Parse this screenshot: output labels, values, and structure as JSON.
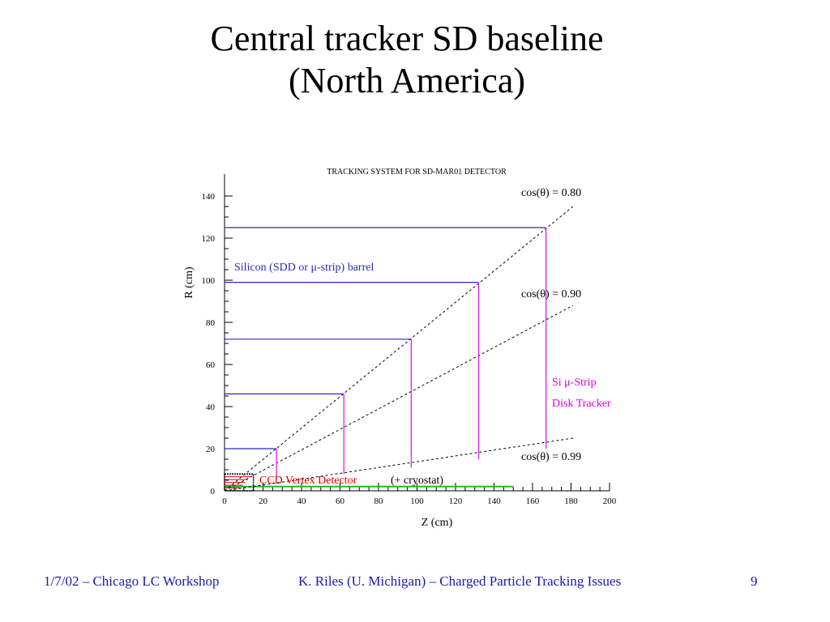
{
  "slide": {
    "title_line1": "Central tracker SD baseline",
    "title_line2": "(North America)"
  },
  "footer": {
    "left": "1/7/02 – Chicago LC Workshop",
    "center": "K. Riles (U. Michigan) – Charged Particle Tracking Issues",
    "page": "9"
  },
  "colors": {
    "barrel": "#2828d0",
    "disk": "#e020e0",
    "cone": "#000000",
    "ccd": "#dd0000",
    "beampipe": "#22bb22",
    "blue_text": "#2a2ab0",
    "footer": "#1a1aa6"
  },
  "chart_data": {
    "type": "line",
    "title": "TRACKING SYSTEM FOR SD-MAR01 DETECTOR",
    "xlabel": "Z (cm)",
    "ylabel": "R (cm)",
    "xlim": [
      0,
      200
    ],
    "ylim": [
      0,
      150
    ],
    "xticks": [
      0,
      20,
      40,
      60,
      80,
      100,
      120,
      140,
      160,
      180,
      200
    ],
    "yticks": [
      0,
      20,
      40,
      60,
      80,
      100,
      120,
      140
    ],
    "barrel_layers": [
      {
        "r": 20,
        "z_max": 27
      },
      {
        "r": 46,
        "z_max": 62
      },
      {
        "r": 72,
        "z_max": 97
      },
      {
        "r": 99,
        "z_max": 132
      },
      {
        "r": 125,
        "z_max": 167
      }
    ],
    "disks": [
      {
        "z": 27,
        "r_min": 6,
        "r_max": 20
      },
      {
        "z": 62,
        "r_min": 8,
        "r_max": 46
      },
      {
        "z": 97,
        "r_min": 11,
        "r_max": 72
      },
      {
        "z": 132,
        "r_min": 15,
        "r_max": 99
      },
      {
        "z": 167,
        "r_min": 20,
        "r_max": 125
      }
    ],
    "cones": [
      {
        "label": "cos(θ) = 0.80",
        "z_end": 181,
        "r_end": 135
      },
      {
        "label": "cos(θ) = 0.90",
        "z_end": 181,
        "r_end": 88
      },
      {
        "label": "cos(θ) = 0.99",
        "z_end": 181,
        "r_end": 25
      }
    ],
    "beampipe": {
      "z_max": 150,
      "r": 2
    },
    "vertex_detector": {
      "z_max": 15,
      "r_max": 8
    },
    "annotations": {
      "cone_08": "cos(θ) = 0.80",
      "cone_09": "cos(θ) = 0.90",
      "cone_099": "cos(θ) = 0.99",
      "barrel_label": "Silicon (SDD or μ-strip) barrel",
      "disk_label_1": "Si μ-Strip",
      "disk_label_2": "Disk Tracker",
      "ccd_label": "CCD Vertex Detector",
      "cryostat_label": "(+ cryostat)"
    }
  }
}
